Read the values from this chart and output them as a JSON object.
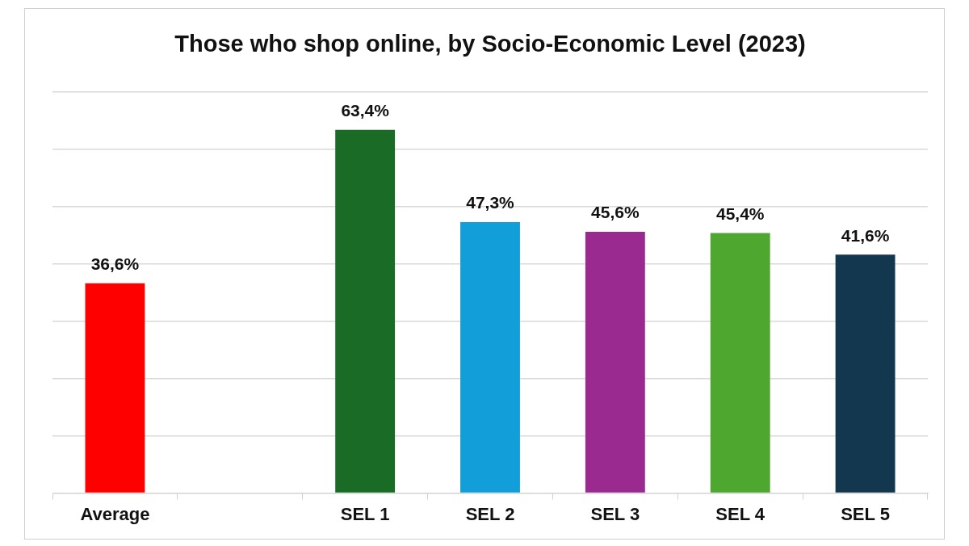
{
  "chart_data": {
    "type": "bar",
    "title": "Those who shop online, by Socio-Economic Level (2023)",
    "categories": [
      "Average",
      null,
      "SEL 1",
      "SEL 2",
      "SEL 3",
      "SEL 4",
      "SEL 5"
    ],
    "values": [
      36.6,
      null,
      63.4,
      47.3,
      45.6,
      45.4,
      41.6
    ],
    "value_labels": [
      "36,6%",
      null,
      "63,4%",
      "47,3%",
      "45,6%",
      "45,4%",
      "41,6%"
    ],
    "colors": [
      "#ff0000",
      null,
      "#1a6b25",
      "#129ed8",
      "#9b2a90",
      "#4ea72e",
      "#12374f"
    ],
    "ylim": [
      0,
      70
    ],
    "yticks": [
      {
        "value": 0,
        "label": null
      },
      {
        "value": 10,
        "label": null
      },
      {
        "value": 20,
        "label": null
      },
      {
        "value": 30,
        "label": null
      },
      {
        "value": 40,
        "label": null
      },
      {
        "value": 50,
        "label": null
      },
      {
        "value": 60,
        "label": null
      },
      {
        "value": 70,
        "label": null
      }
    ],
    "grid": "y",
    "tick_labels": "x",
    "legend": false
  }
}
